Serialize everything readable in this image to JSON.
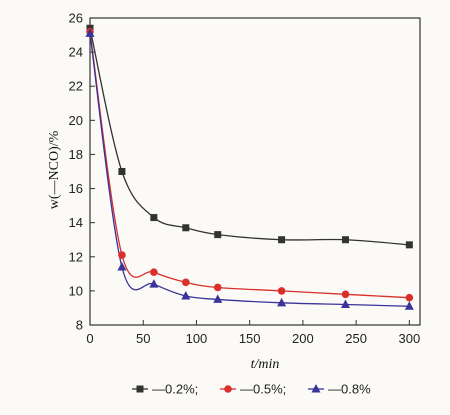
{
  "chart_data": {
    "type": "line",
    "xlabel": "t/min",
    "ylabel": "w(—NCO)/%",
    "xlim": [
      0,
      310
    ],
    "ylim": [
      8,
      26
    ],
    "xticks": [
      0,
      50,
      100,
      150,
      200,
      250,
      300
    ],
    "yticks": [
      8,
      10,
      12,
      14,
      16,
      18,
      20,
      22,
      24,
      26
    ],
    "grid": false,
    "legend_position": "bottom",
    "series": [
      {
        "name": "—0.2%;",
        "color": "#333333",
        "marker": "square",
        "x": [
          0,
          30,
          60,
          90,
          120,
          180,
          240,
          300
        ],
        "y": [
          25.4,
          17.0,
          14.3,
          13.7,
          13.3,
          13.0,
          13.0,
          12.7
        ]
      },
      {
        "name": "—0.5%;",
        "color": "#d9302b",
        "marker": "circle",
        "x": [
          0,
          30,
          60,
          90,
          120,
          180,
          240,
          300
        ],
        "y": [
          25.2,
          12.1,
          11.1,
          10.5,
          10.2,
          10.0,
          9.8,
          9.6
        ]
      },
      {
        "name": "—0.8%",
        "color": "#3a3399",
        "marker": "triangle",
        "x": [
          0,
          30,
          60,
          90,
          120,
          180,
          240,
          300
        ],
        "y": [
          25.1,
          11.4,
          10.4,
          9.7,
          9.5,
          9.3,
          9.2,
          9.1
        ]
      }
    ]
  }
}
